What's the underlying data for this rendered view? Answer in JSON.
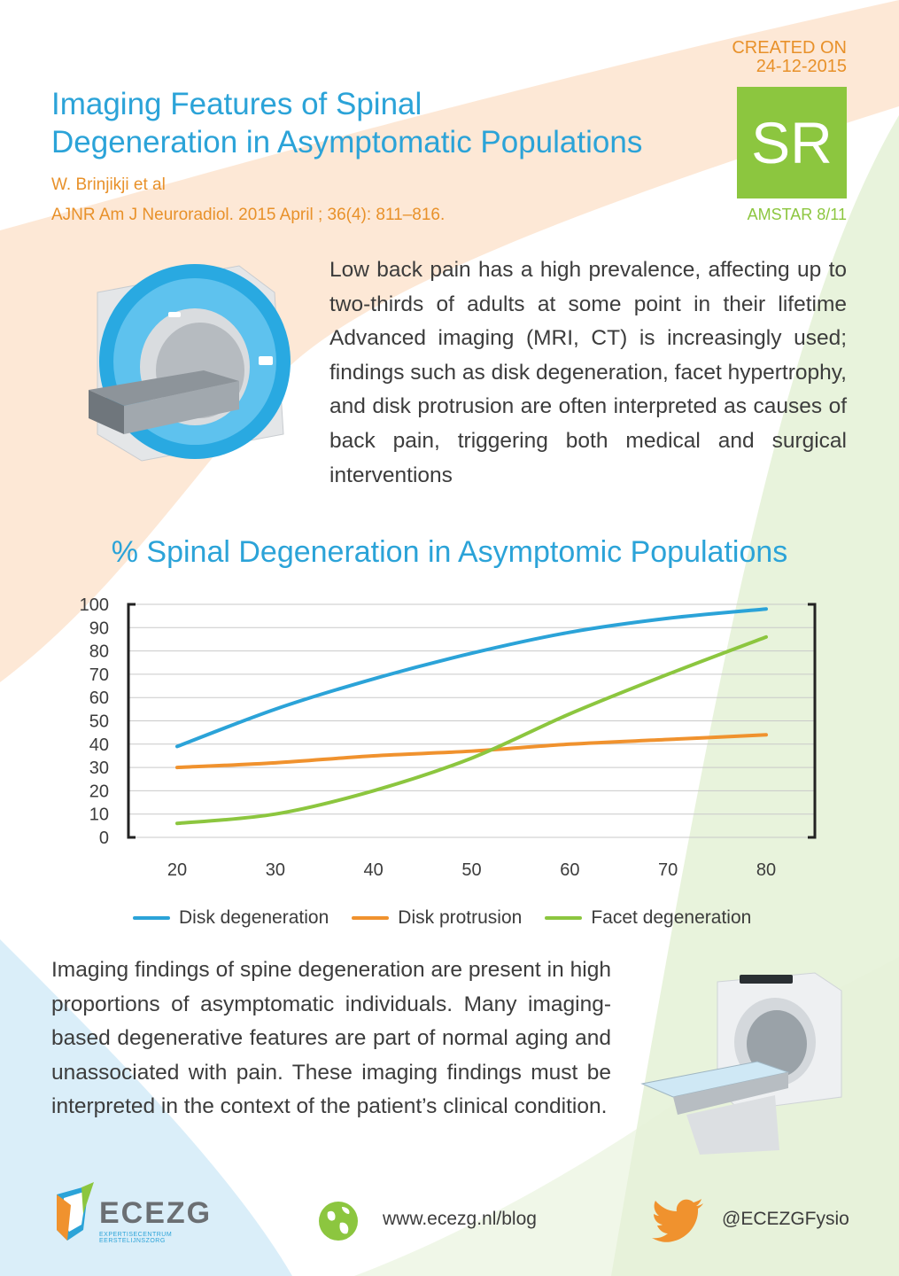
{
  "header": {
    "title_line1": "Imaging Features of Spinal",
    "title_line2": "Degeneration in Asymptomatic Populations",
    "author": "W. Brinjikji et al",
    "journal": "AJNR Am J Neuroradiol. 2015 April ; 36(4): 811–816."
  },
  "badge": {
    "created_label": "CREATED ON",
    "created_date": "24-12-2015",
    "code": "SR",
    "amstar": "AMSTAR 8/11"
  },
  "intro_text": "Low back pain has a high prevalence, affecting up to two-thirds of adults at some point in their lifetime Advanced imaging (MRI, CT) is increasingly used; findings such as disk degeneration, facet hypertrophy, and disk protrusion are often interpreted as causes of back pain, triggering both medical and surgical interventions",
  "chart_data": {
    "type": "line",
    "title": "% Spinal Degeneration in Asymptomic Populations",
    "x": [
      20,
      30,
      40,
      50,
      60,
      70,
      80
    ],
    "ylim": [
      0,
      100
    ],
    "yticks": [
      0,
      10,
      20,
      30,
      40,
      50,
      60,
      70,
      80,
      90,
      100
    ],
    "grid": true,
    "legend_position": "bottom",
    "series": [
      {
        "name": "Disk degeneration",
        "color": "#2ba3d8",
        "values": [
          39,
          55,
          68,
          79,
          88,
          94,
          98
        ]
      },
      {
        "name": "Disk protrusion",
        "color": "#f0922e",
        "values": [
          30,
          32,
          35,
          37,
          40,
          42,
          44
        ]
      },
      {
        "name": "Facet degeneration",
        "color": "#8cc63f",
        "values": [
          6,
          10,
          20,
          34,
          53,
          70,
          86
        ]
      }
    ]
  },
  "conclusion_text": "Imaging findings of spine degeneration are present in high proportions of asymptomatic individuals. Many imaging-based degenerative features are part of normal aging and unassociated with pain. These imaging findings must be interpreted in the context of the patient’s clinical condition.",
  "footer": {
    "logo_text": "ECEZG",
    "logo_subtext": "EXPERTISECENTRUM EERSTELIJNSZORG",
    "url": "www.ecezg.nl/blog",
    "twitter": "@ECEZGFysio"
  },
  "colors": {
    "blue": "#2ba3d8",
    "orange": "#e8912a",
    "green": "#8cc63f"
  }
}
